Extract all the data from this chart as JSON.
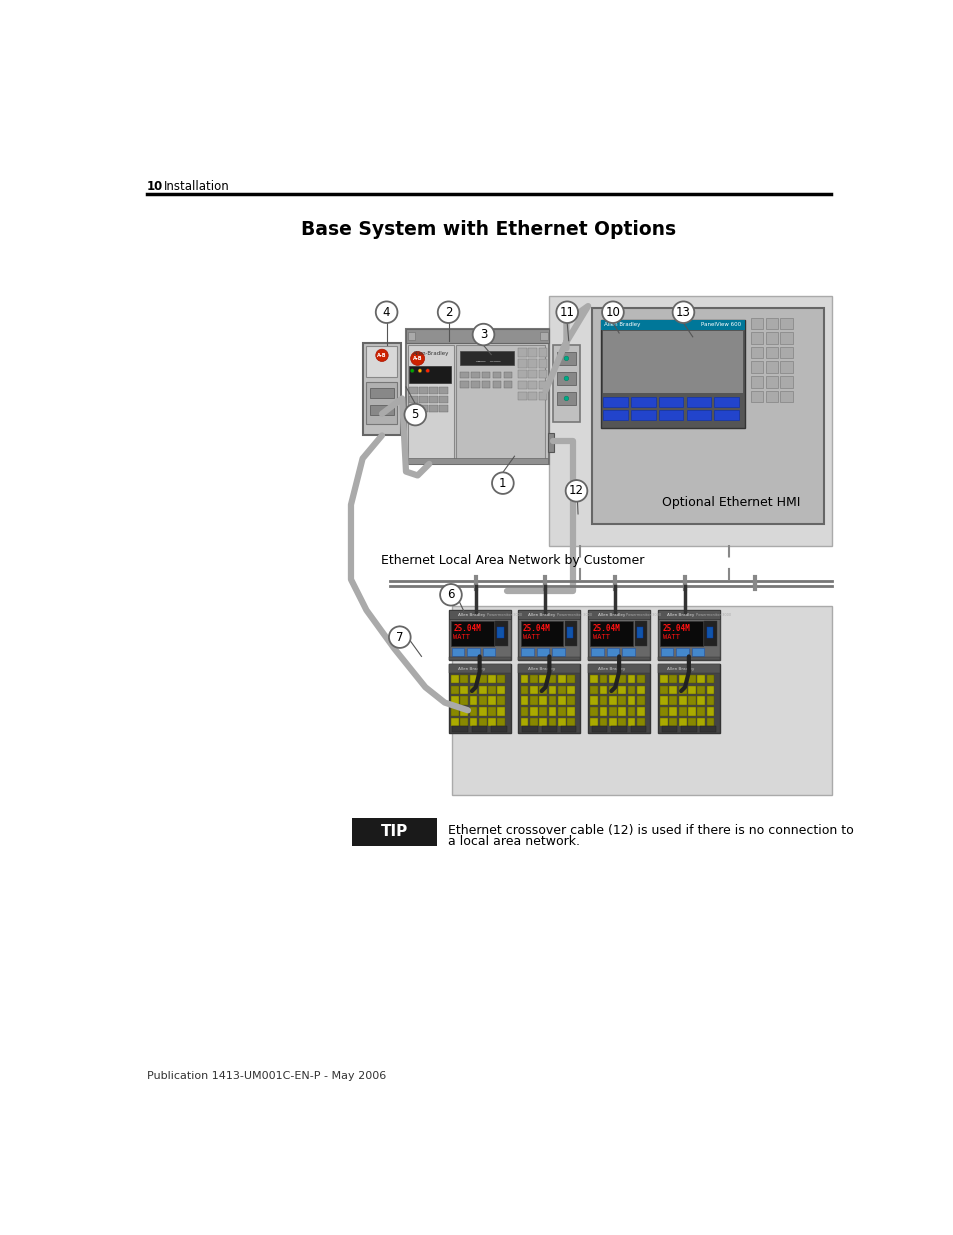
{
  "page_number": "10",
  "page_header": "Installation",
  "title": "Base System with Ethernet Options",
  "tip_label": "TIP",
  "tip_text_line1": "Ethernet crossover cable (12) is used if there is no connection to",
  "tip_text_line2": "a local area network.",
  "footer": "Publication 1413-UM001C-EN-P - May 2006",
  "label_ethernet_lan": "Ethernet Local Area Network by Customer",
  "label_optional_hmi": "Optional Ethernet HMI",
  "bg_color": "#ffffff",
  "tip_box_color": "#1a1a1a",
  "hmi_bg": "#d8d8d8",
  "meters_bg": "#d8d8d8",
  "controller_body": "#c8c8c8",
  "controller_dark": "#505050",
  "hmi_body": "#b0b0b0",
  "hmi_screen_bg": "#606060",
  "meter_body": "#707070",
  "meter_display": "#151515",
  "terminal_body": "#555555",
  "cable_color": "#aaaaaa",
  "bus_color": "#999999"
}
